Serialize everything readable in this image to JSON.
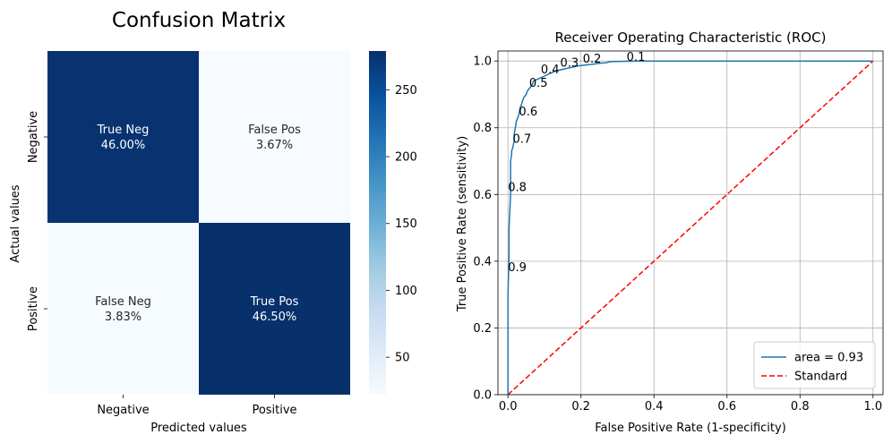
{
  "chart_data": [
    {
      "type": "heatmap",
      "title": "Confusion Matrix",
      "xlabel": "Predicted values",
      "ylabel": "Actual values",
      "x_categories": [
        "Negative",
        "Positive"
      ],
      "y_categories": [
        "Negative",
        "Positive"
      ],
      "cells": [
        [
          {
            "label": "True Neg",
            "pct": "46.00%",
            "count": 276
          },
          {
            "label": "False Pos",
            "pct": "3.67%",
            "count": 22
          }
        ],
        [
          {
            "label": "False Neg",
            "pct": "3.83%",
            "count": 23
          },
          {
            "label": "True Pos",
            "pct": "46.50%",
            "count": 279
          }
        ]
      ],
      "colorbar": {
        "min": 22,
        "max": 279,
        "ticks": [
          50,
          100,
          150,
          200,
          250
        ],
        "colormap": "Blues"
      }
    },
    {
      "type": "line",
      "title": "Receiver Operating Characteristic (ROC)",
      "xlabel": "False Positive Rate (1-specificity)",
      "ylabel": "True Positive Rate (sensitivity)",
      "xlim": [
        0,
        1
      ],
      "ylim": [
        0,
        1.03
      ],
      "xticks": [
        "0.0",
        "0.2",
        "0.4",
        "0.6",
        "0.8",
        "1.0"
      ],
      "yticks": [
        "0.0",
        "0.2",
        "0.4",
        "0.6",
        "0.8",
        "1.0"
      ],
      "grid": true,
      "legend_position": "lower-right",
      "series": [
        {
          "name": "area = 0.93",
          "color": "#1f77b4",
          "style": "solid",
          "x": [
            0.0,
            0.0,
            0.003,
            0.003,
            0.007,
            0.007,
            0.01,
            0.01,
            0.013,
            0.017,
            0.017,
            0.02,
            0.023,
            0.027,
            0.03,
            0.033,
            0.037,
            0.04,
            0.043,
            0.05,
            0.053,
            0.06,
            0.067,
            0.07,
            0.08,
            0.09,
            0.1,
            0.11,
            0.12,
            0.13,
            0.15,
            0.17,
            0.19,
            0.21,
            0.23,
            0.25,
            0.27,
            0.28,
            0.35,
            0.5,
            0.7,
            1.0
          ],
          "y": [
            0.0,
            0.3,
            0.42,
            0.5,
            0.6,
            0.7,
            0.72,
            0.73,
            0.74,
            0.76,
            0.78,
            0.8,
            0.82,
            0.83,
            0.84,
            0.86,
            0.87,
            0.88,
            0.89,
            0.9,
            0.91,
            0.92,
            0.93,
            0.94,
            0.945,
            0.95,
            0.955,
            0.96,
            0.965,
            0.97,
            0.975,
            0.98,
            0.985,
            0.988,
            0.99,
            0.993,
            0.995,
            0.998,
            1.0,
            1.0,
            1.0,
            1.0
          ]
        },
        {
          "name": "Standard",
          "color": "#ff0000",
          "style": "dashed",
          "x": [
            0,
            1
          ],
          "y": [
            0,
            1
          ]
        }
      ],
      "threshold_labels": [
        {
          "text": "0.1",
          "x": 0.325,
          "y": 1.0
        },
        {
          "text": "0.2",
          "x": 0.205,
          "y": 0.995
        },
        {
          "text": "0.3",
          "x": 0.143,
          "y": 0.983
        },
        {
          "text": "0.4",
          "x": 0.09,
          "y": 0.963
        },
        {
          "text": "0.5",
          "x": 0.058,
          "y": 0.923
        },
        {
          "text": "0.6",
          "x": 0.03,
          "y": 0.837
        },
        {
          "text": "0.7",
          "x": 0.013,
          "y": 0.755
        },
        {
          "text": "0.8",
          "x": 0.0,
          "y": 0.61
        },
        {
          "text": "0.9",
          "x": 0.0,
          "y": 0.37
        }
      ]
    }
  ]
}
